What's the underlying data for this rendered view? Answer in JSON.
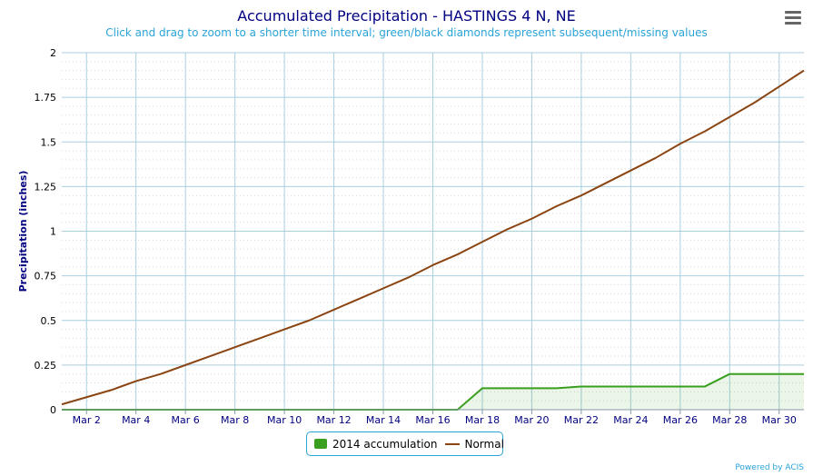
{
  "menu": {
    "icon": "hamburger-menu-icon"
  },
  "credits": "Powered by ACIS",
  "chart_data": {
    "type": "area",
    "title": "Accumulated Precipitation - HASTINGS 4 N, NE",
    "subtitle": "Click and drag to zoom to a shorter time interval; green/black diamonds represent subsequent/missing values",
    "xlabel": "",
    "ylabel": "Precipitation (inches)",
    "ylim": [
      0,
      2
    ],
    "yticks": [
      "0",
      "0.25",
      "0.5",
      "0.75",
      "1",
      "1.25",
      "1.5",
      "1.75",
      "2"
    ],
    "xticks": [
      "Mar 2",
      "Mar 4",
      "Mar 6",
      "Mar 8",
      "Mar 10",
      "Mar 12",
      "Mar 14",
      "Mar 16",
      "Mar 18",
      "Mar 20",
      "Mar 22",
      "Mar 24",
      "Mar 26",
      "Mar 28",
      "Mar 30"
    ],
    "x": [
      "Mar 1",
      "Mar 2",
      "Mar 3",
      "Mar 4",
      "Mar 5",
      "Mar 6",
      "Mar 7",
      "Mar 8",
      "Mar 9",
      "Mar 10",
      "Mar 11",
      "Mar 12",
      "Mar 13",
      "Mar 14",
      "Mar 15",
      "Mar 16",
      "Mar 17",
      "Mar 18",
      "Mar 19",
      "Mar 20",
      "Mar 21",
      "Mar 22",
      "Mar 23",
      "Mar 24",
      "Mar 25",
      "Mar 26",
      "Mar 27",
      "Mar 28",
      "Mar 29",
      "Mar 30",
      "Mar 31"
    ],
    "grid": true,
    "legend_position": "bottom-center",
    "series": [
      {
        "name": "2014 accumulation",
        "type": "area",
        "color": "#3a9f1f",
        "values": [
          0,
          0,
          0,
          0,
          0,
          0,
          0,
          0,
          0,
          0,
          0,
          0,
          0,
          0,
          0,
          0,
          0,
          0.12,
          0.12,
          0.12,
          0.12,
          0.13,
          0.13,
          0.13,
          0.13,
          0.13,
          0.13,
          0.2,
          0.2,
          0.2,
          0.2
        ]
      },
      {
        "name": "Normal",
        "type": "line",
        "color": "#8b4513",
        "values": [
          0.03,
          0.07,
          0.11,
          0.16,
          0.2,
          0.25,
          0.3,
          0.35,
          0.4,
          0.45,
          0.5,
          0.56,
          0.62,
          0.68,
          0.74,
          0.81,
          0.87,
          0.94,
          1.01,
          1.07,
          1.14,
          1.2,
          1.27,
          1.34,
          1.41,
          1.49,
          1.56,
          1.64,
          1.72,
          1.81,
          1.9
        ]
      }
    ]
  }
}
